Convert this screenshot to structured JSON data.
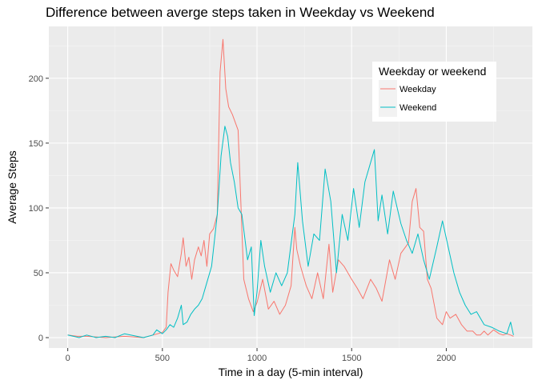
{
  "chart_data": {
    "type": "line",
    "title": "Difference between averge steps taken in Weekday vs Weekend",
    "xlabel": "Time in a day (5-min interval)",
    "ylabel": "Average Steps",
    "xlim": [
      -100,
      2455
    ],
    "ylim": [
      -8,
      240
    ],
    "x_ticks": [
      0,
      500,
      1000,
      1500,
      2000
    ],
    "x_tick_labels": [
      "0",
      "500",
      "1000",
      "1500",
      "2000"
    ],
    "y_ticks": [
      0,
      50,
      100,
      150,
      200
    ],
    "y_tick_labels": [
      "0",
      "50",
      "100",
      "150",
      "200"
    ],
    "grid": true,
    "legend": {
      "title": "Weekday or weekend",
      "position": "top-right",
      "entries": [
        "Weekday",
        "Weekend"
      ]
    },
    "series": [
      {
        "name": "Weekday",
        "color": "#F8766D",
        "x": [
          0,
          50,
          100,
          200,
          300,
          400,
          450,
          500,
          520,
          530,
          545,
          560,
          580,
          600,
          610,
          625,
          640,
          655,
          670,
          690,
          705,
          720,
          735,
          750,
          770,
          790,
          805,
          820,
          835,
          850,
          870,
          900,
          930,
          955,
          980,
          1000,
          1030,
          1060,
          1090,
          1120,
          1150,
          1180,
          1200,
          1210,
          1230,
          1260,
          1290,
          1320,
          1350,
          1380,
          1400,
          1430,
          1460,
          1500,
          1530,
          1560,
          1600,
          1630,
          1660,
          1700,
          1730,
          1760,
          1800,
          1820,
          1840,
          1860,
          1880,
          1900,
          1920,
          1950,
          1980,
          2000,
          2020,
          2050,
          2080,
          2110,
          2140,
          2160,
          2180,
          2200,
          2220,
          2250,
          2280,
          2300,
          2320,
          2340,
          2355
        ],
        "y": [
          2,
          1,
          1,
          0,
          1,
          0,
          2,
          4,
          8,
          35,
          57,
          52,
          47,
          65,
          77,
          55,
          62,
          45,
          60,
          70,
          63,
          75,
          55,
          80,
          84,
          95,
          205,
          230,
          192,
          178,
          172,
          160,
          45,
          30,
          20,
          27,
          45,
          22,
          28,
          18,
          25,
          40,
          85,
          68,
          55,
          40,
          30,
          50,
          30,
          72,
          35,
          60,
          55,
          45,
          38,
          30,
          45,
          38,
          28,
          60,
          45,
          65,
          73,
          105,
          115,
          85,
          82,
          45,
          38,
          15,
          10,
          20,
          15,
          18,
          10,
          5,
          5,
          2,
          2,
          5,
          2,
          6,
          3,
          2,
          3,
          2,
          1
        ]
      },
      {
        "name": "Weekend",
        "color": "#00BFC4",
        "x": [
          0,
          30,
          60,
          100,
          150,
          200,
          250,
          300,
          400,
          450,
          470,
          500,
          520,
          540,
          560,
          580,
          600,
          610,
          630,
          650,
          670,
          690,
          710,
          730,
          760,
          790,
          810,
          830,
          845,
          860,
          880,
          900,
          920,
          950,
          970,
          985,
          1000,
          1020,
          1040,
          1070,
          1100,
          1130,
          1160,
          1200,
          1215,
          1240,
          1270,
          1300,
          1330,
          1360,
          1390,
          1420,
          1450,
          1480,
          1510,
          1540,
          1570,
          1600,
          1620,
          1640,
          1660,
          1690,
          1720,
          1760,
          1790,
          1820,
          1850,
          1880,
          1910,
          1950,
          1980,
          2010,
          2040,
          2070,
          2100,
          2130,
          2160,
          2200,
          2240,
          2280,
          2320,
          2340,
          2355
        ],
        "y": [
          2,
          1,
          0,
          2,
          0,
          1,
          0,
          3,
          0,
          2,
          6,
          3,
          6,
          10,
          8,
          15,
          25,
          10,
          12,
          18,
          22,
          25,
          30,
          40,
          55,
          95,
          140,
          163,
          155,
          135,
          120,
          100,
          95,
          60,
          70,
          17,
          35,
          75,
          55,
          35,
          50,
          40,
          50,
          95,
          135,
          90,
          55,
          80,
          75,
          130,
          105,
          50,
          95,
          75,
          115,
          85,
          120,
          135,
          145,
          90,
          110,
          80,
          113,
          88,
          75,
          65,
          80,
          60,
          45,
          70,
          90,
          70,
          50,
          35,
          25,
          18,
          20,
          10,
          8,
          5,
          3,
          12,
          2
        ]
      }
    ]
  }
}
